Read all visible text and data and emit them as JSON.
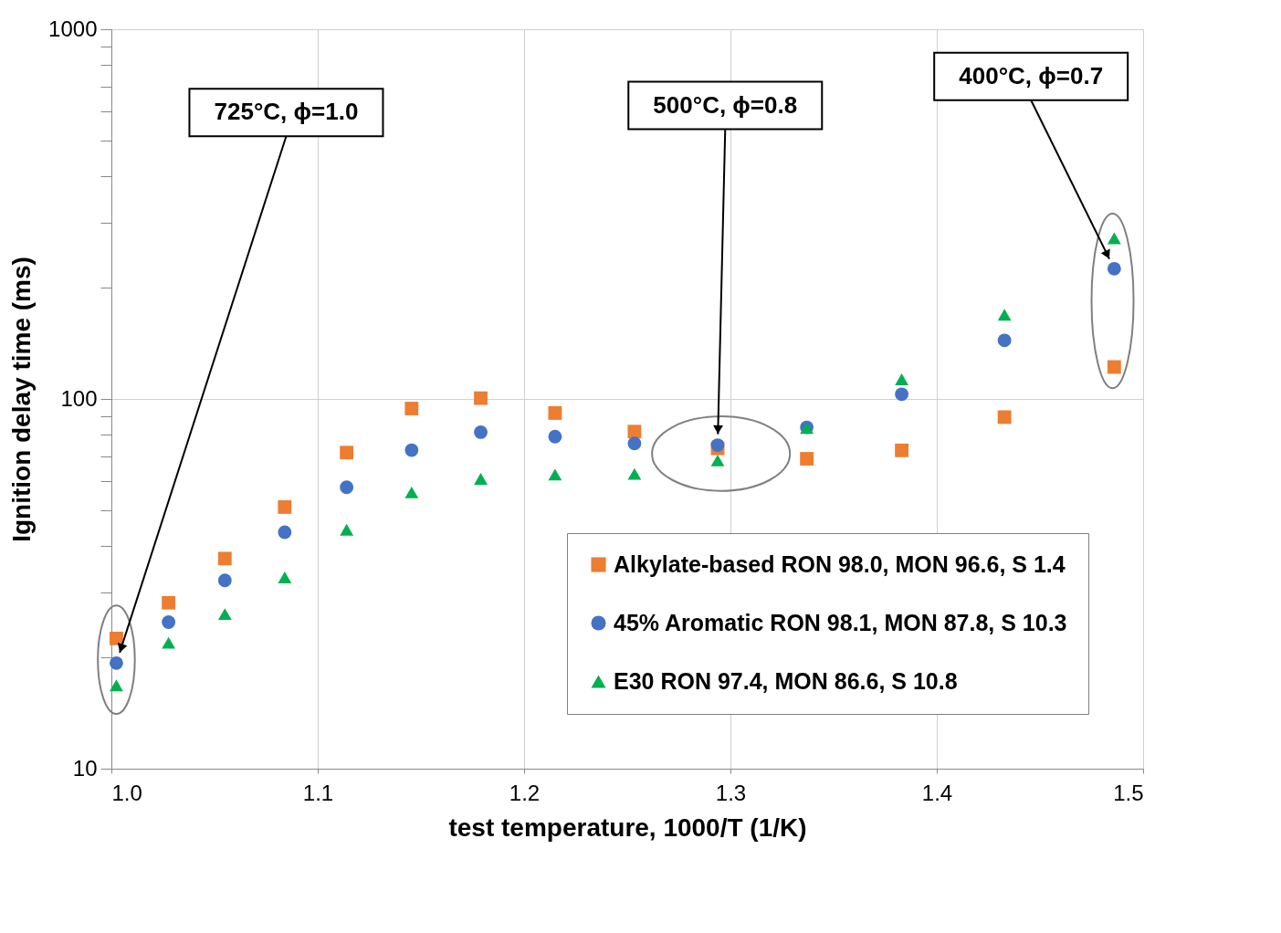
{
  "chart_data": {
    "type": "scatter",
    "xlabel": "test temperature, 1000/T (1/K)",
    "ylabel": "Ignition delay time (ms)",
    "x": [
      1.0024,
      1.0277,
      1.055,
      1.084,
      1.114,
      1.1455,
      1.179,
      1.215,
      1.2535,
      1.2938,
      1.337,
      1.383,
      1.4328,
      1.486
    ],
    "series": [
      {
        "name": "Alkylate-based RON 98.0, MON 96.6, S 1.4",
        "color": "#ed7d31",
        "marker": "square",
        "values": [
          22.5,
          28.1,
          37.0,
          51.0,
          71.6,
          94.2,
          100.5,
          91.6,
          81.6,
          73.5,
          68.9,
          72.6,
          89.3,
          122
        ]
      },
      {
        "name": "45% Aromatic RON 98.1, MON 87.8, S 10.3",
        "color": "#4472c4",
        "marker": "circle",
        "values": [
          19.3,
          24.9,
          32.3,
          43.6,
          57.7,
          72.7,
          81.3,
          79.1,
          75.8,
          75.0,
          83.8,
          103,
          144,
          225
        ]
      },
      {
        "name": "E30 RON 97.4, MON 86.6, S 10.8",
        "color": "#00b050",
        "marker": "triangle",
        "values": [
          16.8,
          21.9,
          26.2,
          32.9,
          44.3,
          55.9,
          60.8,
          62.4,
          62.7,
          68.2,
          83.4,
          113,
          169,
          272
        ]
      }
    ],
    "annotations": [
      "725°C, ϕ=1.0",
      "500°C, ϕ=0.8",
      "400°C, ϕ=0.7"
    ],
    "xlim": [
      1.0,
      1.5
    ],
    "xticks": [
      {
        "value": 1.0,
        "label": "1.0"
      },
      {
        "value": 1.1,
        "label": "1.1"
      },
      {
        "value": 1.2,
        "label": "1.2"
      },
      {
        "value": 1.3,
        "label": "1.3"
      },
      {
        "value": 1.4,
        "label": "1.4"
      },
      {
        "value": 1.5,
        "label": "1.5"
      }
    ],
    "ylim": [
      10,
      1000
    ],
    "yticks": [
      10,
      {
        "value": 20,
        "label": null
      },
      {
        "value": 30,
        "label": null
      },
      {
        "value": 40,
        "label": null
      },
      {
        "value": 50,
        "label": null
      },
      {
        "value": 60,
        "label": null
      },
      {
        "value": 70,
        "label": null
      },
      {
        "value": 80,
        "label": null
      },
      {
        "value": 90,
        "label": null
      },
      100,
      {
        "value": 200,
        "label": null
      },
      {
        "value": 300,
        "label": null
      },
      {
        "value": 400,
        "label": null
      },
      {
        "value": 500,
        "label": null
      },
      {
        "value": 600,
        "label": null
      },
      {
        "value": 700,
        "label": null
      },
      {
        "value": 800,
        "label": null
      },
      {
        "value": 900,
        "label": null
      },
      1000
    ],
    "log": true,
    "grid": true,
    "legend": "bottom right"
  }
}
